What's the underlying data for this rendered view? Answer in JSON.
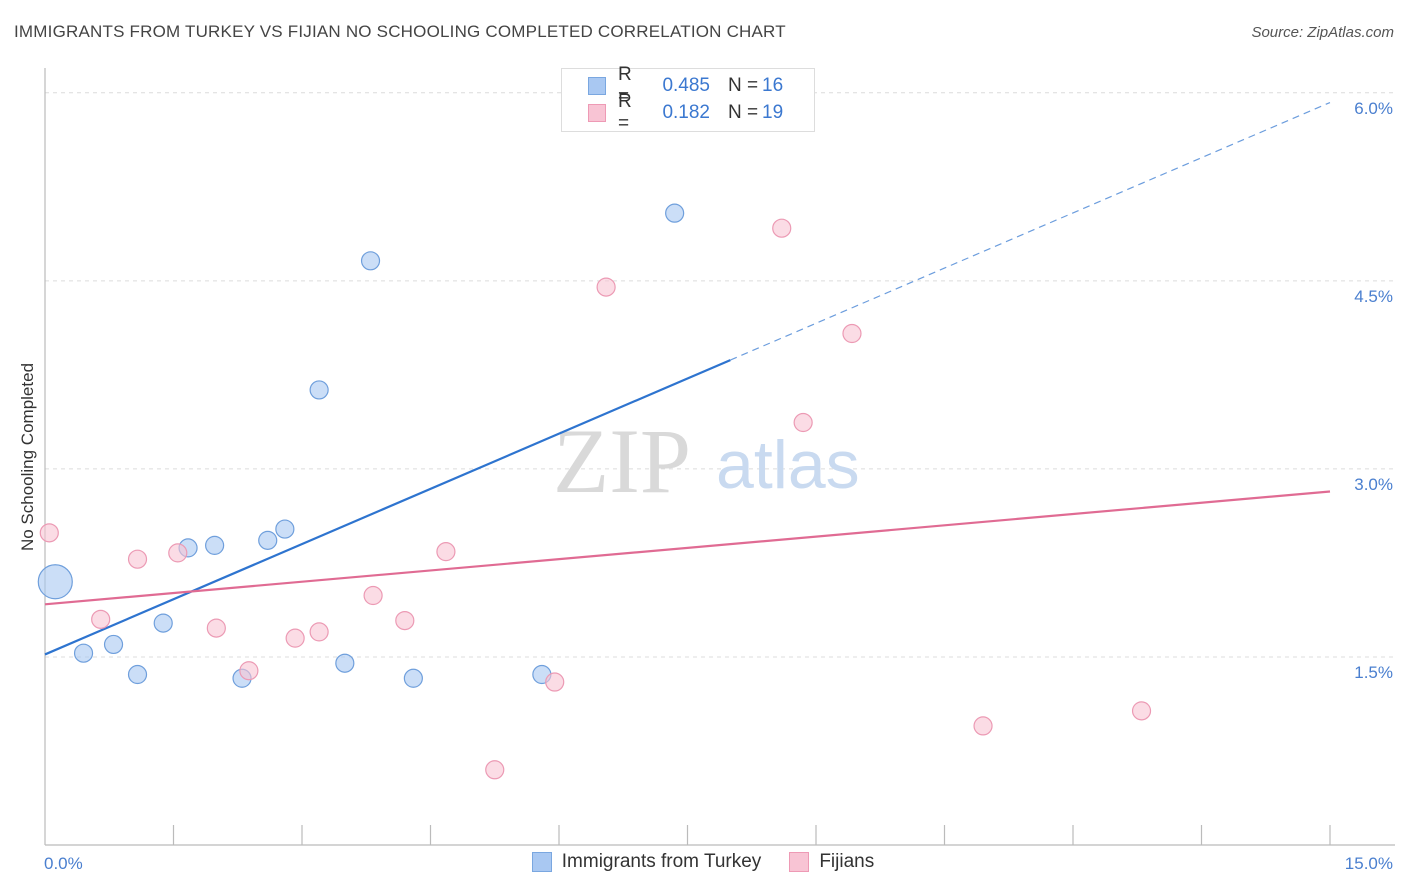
{
  "title": "IMMIGRANTS FROM TURKEY VS FIJIAN NO SCHOOLING COMPLETED CORRELATION CHART",
  "source": "Source: ZipAtlas.com",
  "watermark": {
    "zip": "ZIP",
    "atlas": "atlas"
  },
  "legend": {
    "rows": [
      {
        "r_label": "R =",
        "r_value": "0.485",
        "n_label": "N =",
        "n_value": "16",
        "color": "#a9c8f2",
        "border": "#7aa7e0"
      },
      {
        "r_label": "R =",
        "r_value": "0.182",
        "n_label": "N =",
        "n_value": "19",
        "color": "#f8c4d4",
        "border": "#ee9ab5"
      }
    ]
  },
  "bottom_legend": {
    "items": [
      {
        "label": "Immigrants from Turkey",
        "color": "#a9c8f2",
        "border": "#7aa7e0"
      },
      {
        "label": "Fijians",
        "color": "#f8c4d4",
        "border": "#ee9ab5"
      }
    ]
  },
  "chart_data": {
    "type": "scatter",
    "title": "IMMIGRANTS FROM TURKEY VS FIJIAN NO SCHOOLING COMPLETED CORRELATION CHART",
    "xlabel": "",
    "ylabel": "No Schooling Completed",
    "xlim": [
      0,
      15
    ],
    "ylim": [
      0,
      6.15
    ],
    "x_tick_labels": [
      {
        "value": 0,
        "label": "0.0%"
      },
      {
        "value": 15,
        "label": "15.0%"
      }
    ],
    "y_ticks": [
      {
        "value": 1.5,
        "label": "1.5%"
      },
      {
        "value": 3.0,
        "label": "3.0%"
      },
      {
        "value": 4.5,
        "label": "4.5%"
      },
      {
        "value": 6.0,
        "label": "6.0%"
      }
    ],
    "x_minor_ticks": [
      1.5,
      3.0,
      4.5,
      6.0,
      7.5,
      9.0,
      10.5,
      12.0,
      13.5,
      15.0
    ],
    "series": [
      {
        "name": "Immigrants from Turkey",
        "color": "#a9c8f2",
        "stroke": "#6f9fdc",
        "line_color": "#2e74cf",
        "points": [
          {
            "x": 0.12,
            "y": 2.1,
            "size": "large"
          },
          {
            "x": 0.45,
            "y": 1.53
          },
          {
            "x": 0.8,
            "y": 1.6
          },
          {
            "x": 1.08,
            "y": 1.36
          },
          {
            "x": 1.38,
            "y": 1.77
          },
          {
            "x": 1.67,
            "y": 2.37
          },
          {
            "x": 1.98,
            "y": 2.39
          },
          {
            "x": 2.3,
            "y": 1.33
          },
          {
            "x": 2.6,
            "y": 2.43
          },
          {
            "x": 2.8,
            "y": 2.52
          },
          {
            "x": 3.2,
            "y": 3.63
          },
          {
            "x": 3.5,
            "y": 1.45
          },
          {
            "x": 3.8,
            "y": 4.66
          },
          {
            "x": 4.3,
            "y": 1.33
          },
          {
            "x": 5.8,
            "y": 1.36
          },
          {
            "x": 7.35,
            "y": 5.04
          }
        ],
        "trend": {
          "x0": 0,
          "y0": 1.52,
          "x_solid_end": 8.0,
          "x1": 15,
          "slope": 0.2935
        }
      },
      {
        "name": "Fijians",
        "color": "#f8c4d4",
        "stroke": "#ec9ab4",
        "line_color": "#e06b93",
        "points": [
          {
            "x": 0.05,
            "y": 2.49
          },
          {
            "x": 0.65,
            "y": 1.8
          },
          {
            "x": 1.08,
            "y": 2.28
          },
          {
            "x": 1.55,
            "y": 2.33
          },
          {
            "x": 2.0,
            "y": 1.73
          },
          {
            "x": 2.38,
            "y": 1.39
          },
          {
            "x": 2.92,
            "y": 1.65
          },
          {
            "x": 3.2,
            "y": 1.7
          },
          {
            "x": 3.83,
            "y": 1.99
          },
          {
            "x": 4.2,
            "y": 1.79
          },
          {
            "x": 4.68,
            "y": 2.34
          },
          {
            "x": 5.25,
            "y": 0.6
          },
          {
            "x": 5.95,
            "y": 1.3
          },
          {
            "x": 6.55,
            "y": 4.45
          },
          {
            "x": 8.6,
            "y": 4.92
          },
          {
            "x": 8.85,
            "y": 3.37
          },
          {
            "x": 9.42,
            "y": 4.08
          },
          {
            "x": 10.95,
            "y": 0.95
          },
          {
            "x": 12.8,
            "y": 1.07
          }
        ],
        "trend": {
          "x0": 0,
          "y0": 1.92,
          "x1": 15,
          "y1": 2.82
        }
      }
    ]
  }
}
